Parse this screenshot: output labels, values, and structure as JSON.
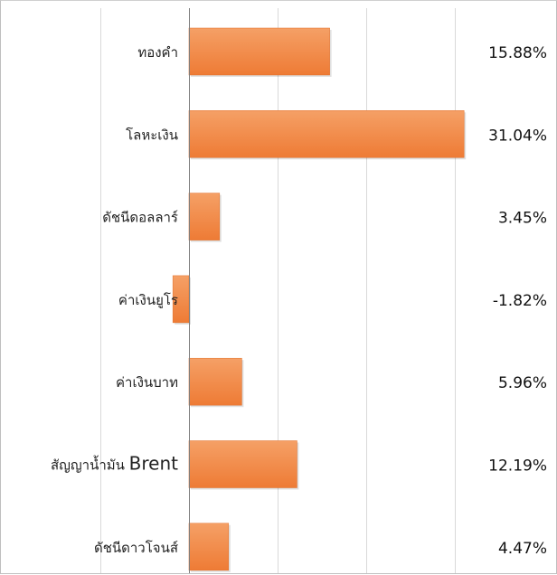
{
  "chart_data": {
    "type": "bar",
    "orientation": "horizontal",
    "categories": [
      "ทองคำ",
      "โลหะเงิน",
      "ดัชนีดอลลาร์",
      "ค่าเงินยูโร",
      "ค่าเงินบาท",
      "สัญญาน้ำมัน Brent",
      "ดัชนีดาวโจนส์"
    ],
    "values": [
      15.88,
      31.04,
      3.45,
      -1.82,
      5.96,
      12.19,
      4.47
    ],
    "value_labels": [
      "15.88%",
      "31.04%",
      "3.45%",
      "-1.82%",
      "5.96%",
      "12.19%",
      "4.47%"
    ],
    "xlim": [
      -10,
      30
    ],
    "grid": true,
    "legend": "none",
    "colors": {
      "bar": "#ee7b35",
      "bar_light": "#f5a066",
      "grid": "#d9d9d9",
      "axis": "#7f7f7f"
    }
  }
}
